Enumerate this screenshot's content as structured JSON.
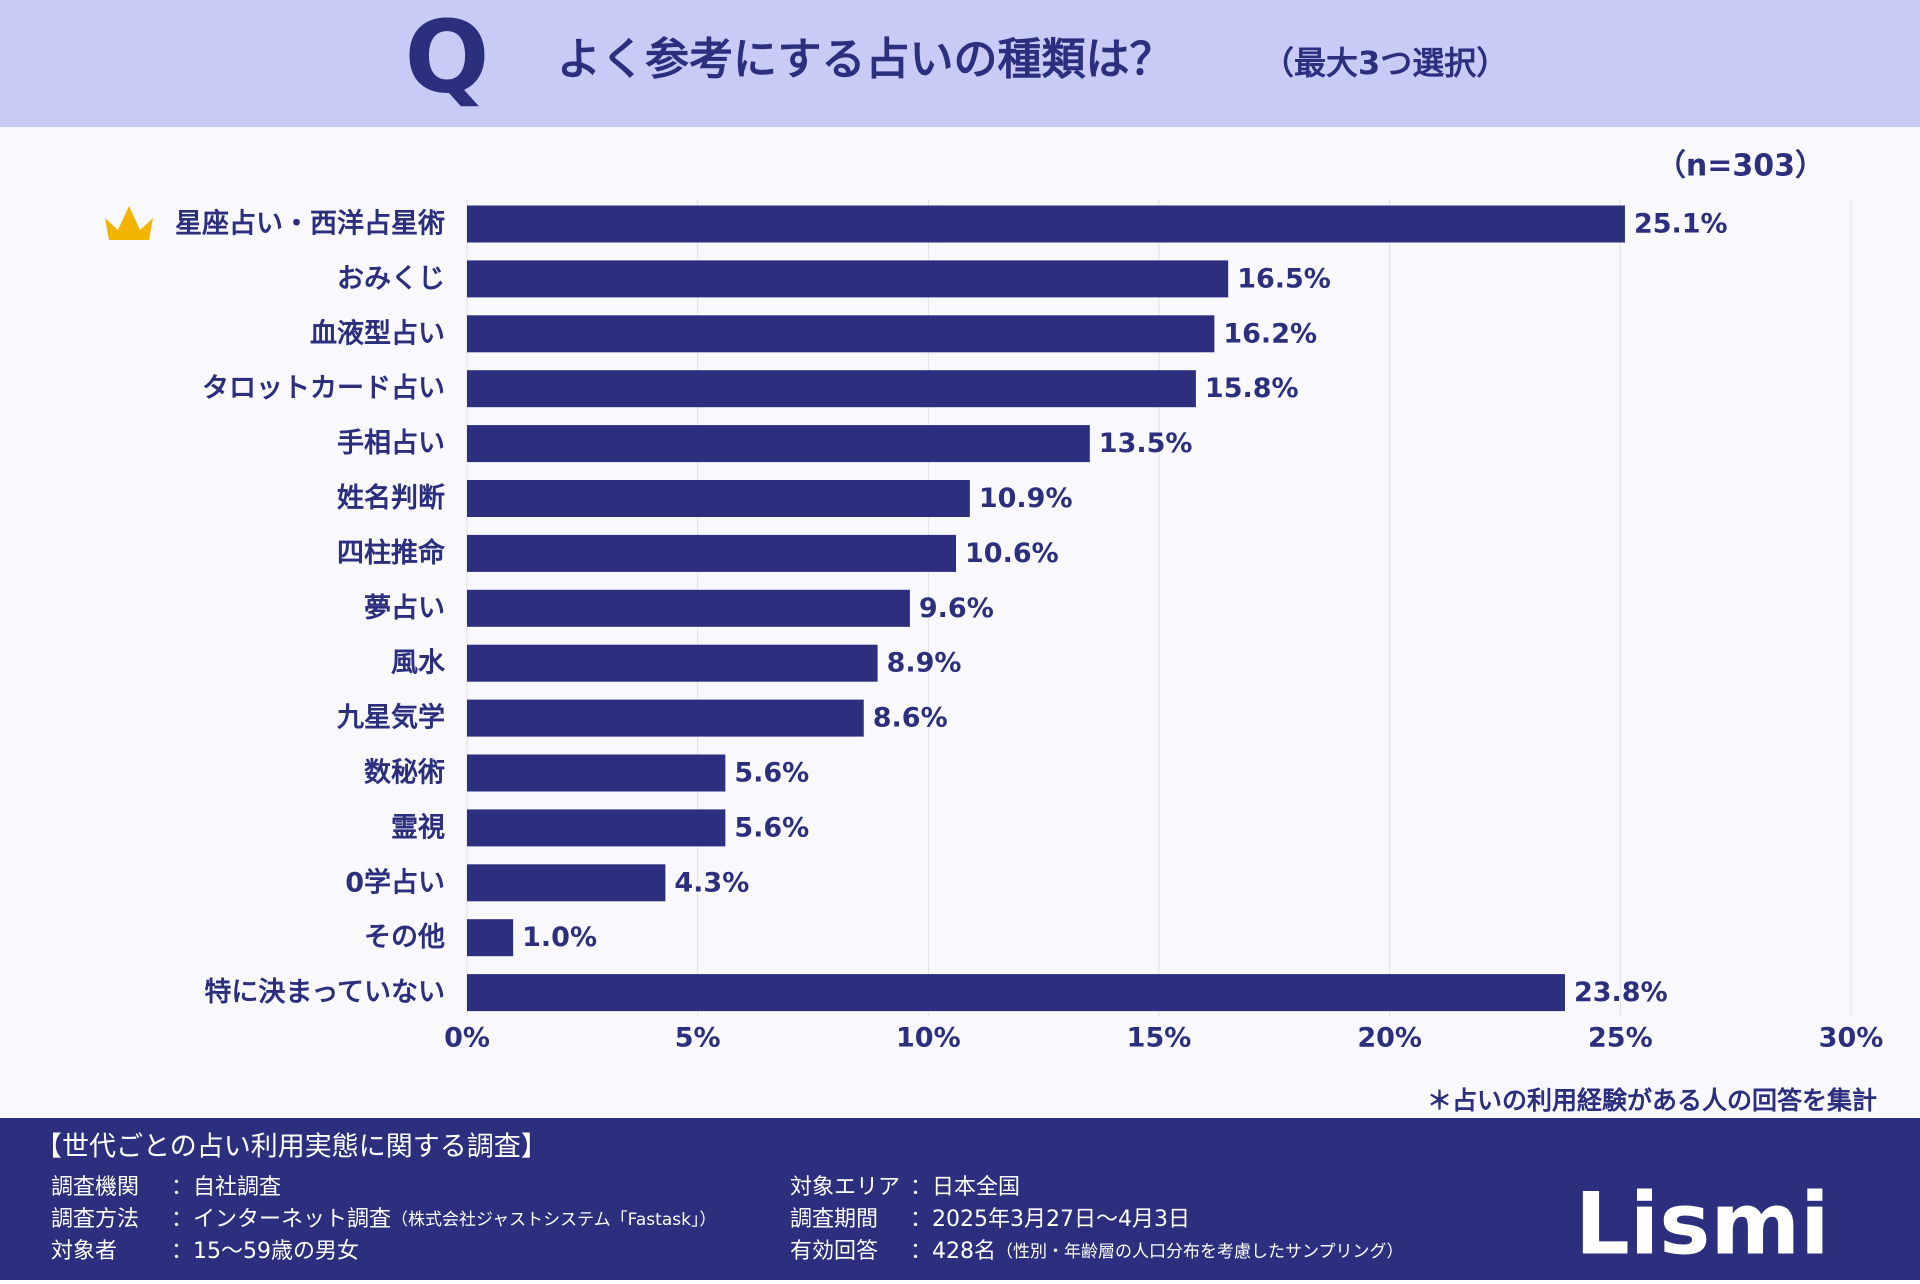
{
  "header_icon": "Q",
  "chart_data": {
    "type": "bar",
    "orientation": "horizontal",
    "title": "よく参考にする占いの種類は？",
    "subtitle": "（最大3つ選択）",
    "sample_note": "（n=303）",
    "categories": [
      "星座占い・西洋占星術",
      "おみくじ",
      "血液型占い",
      "タロットカード占い",
      "手相占い",
      "姓名判断",
      "四柱推命",
      "夢占い",
      "風水",
      "九星気学",
      "数秘術",
      "霊視",
      "0学占い",
      "その他",
      "特に決まっていない"
    ],
    "values": [
      25.1,
      16.5,
      16.2,
      15.8,
      13.5,
      10.9,
      10.6,
      9.6,
      8.9,
      8.6,
      5.6,
      5.6,
      4.3,
      1.0,
      23.8
    ],
    "value_labels": [
      "25.1%",
      "16.5%",
      "16.2%",
      "15.8%",
      "13.5%",
      "10.9%",
      "10.6%",
      "9.6%",
      "8.9%",
      "8.6%",
      "5.6%",
      "5.6%",
      "4.3%",
      "1.0%",
      "23.8%"
    ],
    "color": "#2b2f7e",
    "xlim": [
      0,
      30
    ],
    "xticks": [
      {
        "value": 0,
        "label": "0%"
      },
      {
        "value": 5,
        "label": "5%"
      },
      {
        "value": 10,
        "label": "10%"
      },
      {
        "value": 15,
        "label": "15%"
      },
      {
        "value": 20,
        "label": "20%"
      },
      {
        "value": 25,
        "label": "25%"
      },
      {
        "value": 30,
        "label": "30%"
      }
    ],
    "grid": true,
    "footnote": "＊占いの利用経験がある人の回答を集計"
  },
  "survey": {
    "title": "【世代ごとの占い利用実態に関する調査】",
    "left": [
      {
        "label": "調査機関",
        "value": "：自社調査"
      },
      {
        "label": "調査方法",
        "value": "：インターネット調査",
        "note": "（株式会社ジャストシステム「Fastask」）"
      },
      {
        "label": "対象者",
        "value": "：15〜59歳の男女"
      }
    ],
    "right": [
      {
        "label": "対象エリア",
        "value": "：日本全国"
      },
      {
        "label": "調査期間",
        "value": "：2025年3月27日〜4月3日"
      },
      {
        "label": "有効回答",
        "value": "：428名",
        "note": "（性別・年齢層の人口分布を考慮したサンプリング）"
      }
    ]
  },
  "logo": "Lismi"
}
